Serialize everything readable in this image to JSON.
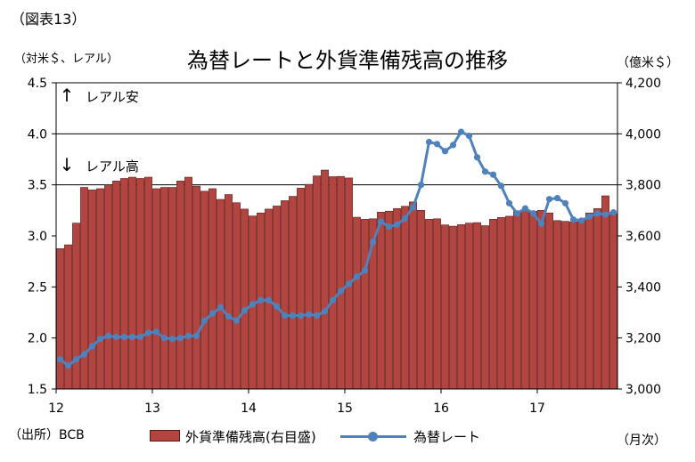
{
  "figure_label": "（図表13）",
  "title": "為替レートと外貨準備残高の推移",
  "units": {
    "left": "（対米＄、レアル）",
    "right": "（億米＄）"
  },
  "source": "（出所）BCB",
  "x_unit": "（月次）",
  "colors": {
    "bar_fill": "#b2453f",
    "bar_edge": "#5a1a17",
    "line": "#4f81bd"
  },
  "chart_data": {
    "type": "bar+line",
    "x_tick_labels": [
      "12",
      "13",
      "14",
      "15",
      "16",
      "17"
    ],
    "y_left": {
      "min": 1.5,
      "max": 4.5,
      "ticks": [
        "1.5",
        "2.0",
        "2.5",
        "3.0",
        "3.5",
        "4.0",
        "4.5"
      ]
    },
    "y_right": {
      "min": 3000,
      "max": 4200,
      "ticks": [
        "3,000",
        "3,200",
        "3,400",
        "3,600",
        "3,800",
        "4,000",
        "4,200"
      ]
    },
    "gridlines": [
      3.5,
      4.0
    ],
    "annotations": [
      {
        "text": "レアル安",
        "arrow": "↑"
      },
      {
        "text": "レアル高",
        "arrow": "↓"
      }
    ],
    "series": [
      {
        "name": "外貨準備残高(右目盛)",
        "type": "bar",
        "axis": "right",
        "values": [
          3550,
          3565,
          3650,
          3790,
          3780,
          3785,
          3800,
          3815,
          3825,
          3830,
          3825,
          3830,
          3785,
          3790,
          3790,
          3815,
          3830,
          3795,
          3775,
          3785,
          3743,
          3762,
          3730,
          3705,
          3678,
          3690,
          3705,
          3717,
          3738,
          3755,
          3787,
          3802,
          3835,
          3858,
          3832,
          3833,
          3827,
          3673,
          3665,
          3667,
          3693,
          3697,
          3707,
          3716,
          3733,
          3700,
          3665,
          3667,
          3643,
          3638,
          3644,
          3650,
          3652,
          3640,
          3665,
          3672,
          3677,
          3697,
          3700,
          3697,
          3700,
          3690,
          3660,
          3657,
          3655,
          3663,
          3690,
          3707,
          3757,
          3687
        ]
      },
      {
        "name": "為替レート",
        "type": "line",
        "axis": "left",
        "values": [
          1.79,
          1.73,
          1.79,
          1.84,
          1.92,
          1.99,
          2.02,
          2.01,
          2.01,
          2.01,
          2.01,
          2.05,
          2.06,
          2.0,
          1.99,
          2.0,
          2.02,
          2.02,
          2.17,
          2.24,
          2.3,
          2.21,
          2.17,
          2.27,
          2.33,
          2.37,
          2.37,
          2.31,
          2.22,
          2.22,
          2.22,
          2.23,
          2.22,
          2.26,
          2.37,
          2.46,
          2.53,
          2.6,
          2.66,
          2.94,
          3.14,
          3.09,
          3.11,
          3.17,
          3.28,
          3.5,
          3.92,
          3.9,
          3.83,
          3.89,
          4.02,
          3.98,
          3.77,
          3.63,
          3.6,
          3.49,
          3.32,
          3.22,
          3.27,
          3.22,
          3.12,
          3.36,
          3.37,
          3.32,
          3.16,
          3.15,
          3.19,
          3.22,
          3.21,
          3.23
        ]
      }
    ]
  }
}
